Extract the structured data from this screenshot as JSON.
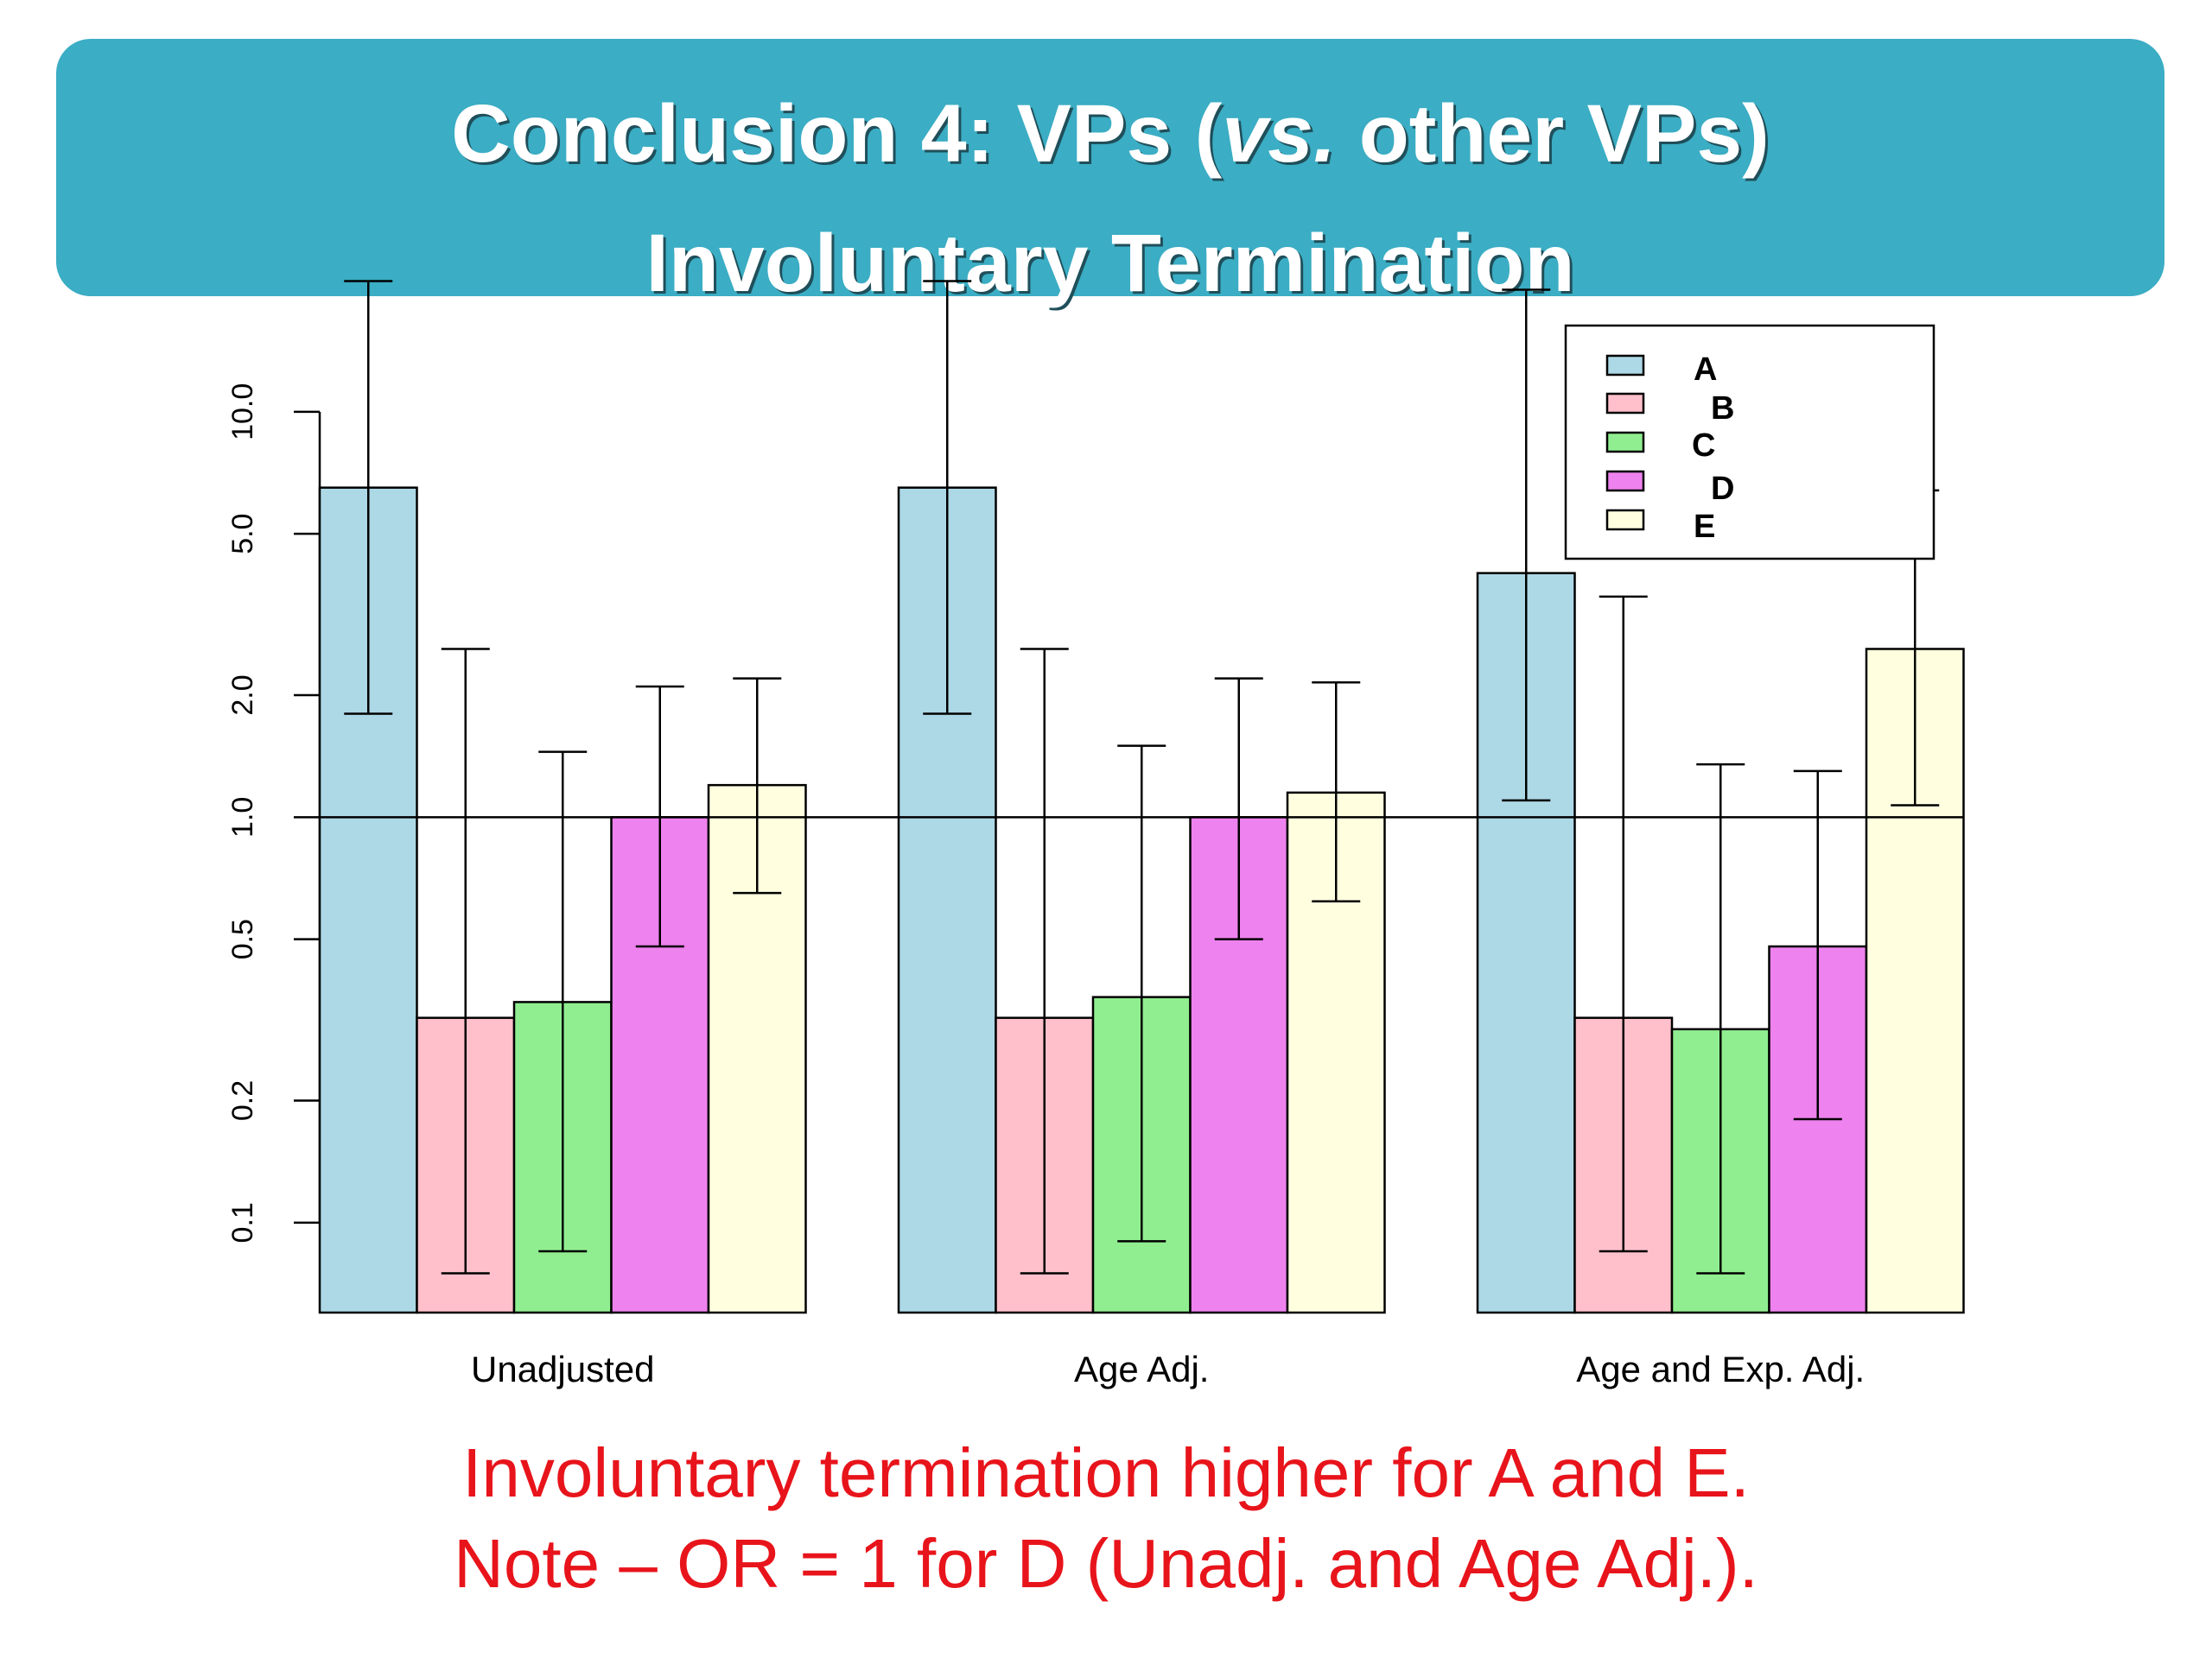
{
  "header": {
    "title_prefix": "Conclusion 4: VPs (",
    "title_emph": "vs.",
    "title_suffix": " other VPs)",
    "subtitle": "Involuntary Termination"
  },
  "chart_data": {
    "type": "bar",
    "y_scale": "log",
    "ylim": [
      0.06,
      25
    ],
    "yticks": [
      0.1,
      0.2,
      0.5,
      1.0,
      2.0,
      5.0,
      10.0
    ],
    "ytick_labels": [
      "0.1",
      "0.2",
      "0.5",
      "1.0",
      "2.0",
      "5.0",
      "10.0"
    ],
    "reference_line": 1.0,
    "groups": [
      "Unadjusted",
      "Age Adj.",
      "Age and Exp. Adj."
    ],
    "legend_position": "top-right",
    "series": [
      {
        "name": "A",
        "color": "#add8e6",
        "values": [
          6.5,
          6.5,
          4.0
        ],
        "lower": [
          1.8,
          1.8,
          1.1
        ],
        "upper": [
          21,
          21,
          20
        ]
      },
      {
        "name": "B",
        "color": "#ffc0cb",
        "values": [
          0.32,
          0.32,
          0.32
        ],
        "lower": [
          0.075,
          0.075,
          0.085
        ],
        "upper": [
          2.6,
          2.6,
          3.5
        ]
      },
      {
        "name": "C",
        "color": "#90ee90",
        "values": [
          0.35,
          0.36,
          0.3
        ],
        "lower": [
          0.085,
          0.09,
          0.075
        ],
        "upper": [
          1.45,
          1.5,
          1.35
        ]
      },
      {
        "name": "D",
        "color": "#ee82ee",
        "values": [
          1.0,
          1.0,
          0.48
        ],
        "lower": [
          0.48,
          0.5,
          0.18
        ],
        "upper": [
          2.1,
          2.2,
          1.3
        ]
      },
      {
        "name": "E",
        "color": "#ffffe0",
        "values": [
          1.2,
          1.15,
          2.6
        ],
        "lower": [
          0.65,
          0.62,
          1.07
        ],
        "upper": [
          2.2,
          2.15,
          6.4
        ]
      }
    ]
  },
  "caption": {
    "line1": "Involuntary termination higher for A and E.",
    "line2": "Note – OR = 1 for D (Unadj. and Age Adj.)."
  }
}
